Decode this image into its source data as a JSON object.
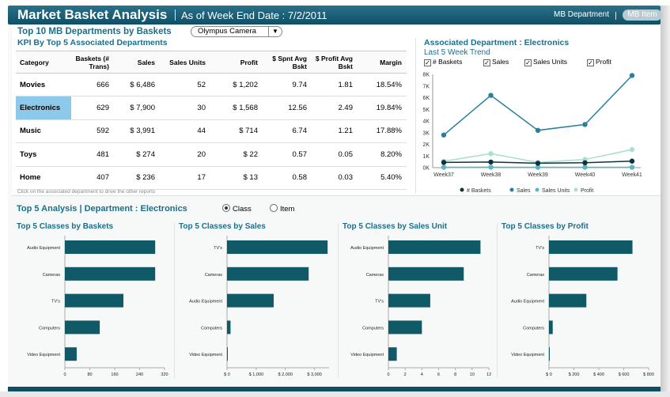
{
  "header": {
    "title": "Market Basket Analysis",
    "as_of": "As of Week End Date : 7/2/2011",
    "nav_department": "MB Department",
    "nav_item": "MB Item"
  },
  "top10": {
    "title": "Top 10 MB Departments by Baskets",
    "selected_value": "Olympus Camera",
    "kpi_title": "KPI By Top 5 Associated Departments",
    "note": "Click on the associated department to drive the other reports",
    "columns": [
      "Category",
      "Baskets (# Trans)",
      "Sales",
      "Sales Units",
      "Profit",
      "$ Spnt Avg Bskt",
      "$ Profit Avg Bskt",
      "Margin"
    ],
    "rows": [
      {
        "category": "Movies",
        "baskets": "666",
        "sales": "$ 6,486",
        "units": "52",
        "profit": "$ 1,202",
        "spnt": "9.74",
        "pavg": "1.81",
        "margin": "18.54%"
      },
      {
        "category": "Electronics",
        "baskets": "629",
        "sales": "$ 7,900",
        "units": "30",
        "profit": "$ 1,568",
        "spnt": "12.56",
        "pavg": "2.49",
        "margin": "19.84%"
      },
      {
        "category": "Music",
        "baskets": "592",
        "sales": "$ 3,991",
        "units": "44",
        "profit": "$ 714",
        "spnt": "6.74",
        "pavg": "1.21",
        "margin": "17.88%"
      },
      {
        "category": "Toys",
        "baskets": "481",
        "sales": "$ 274",
        "units": "20",
        "profit": "$ 22",
        "spnt": "0.57",
        "pavg": "0.05",
        "margin": "8.20%"
      },
      {
        "category": "Home",
        "baskets": "407",
        "sales": "$ 236",
        "units": "17",
        "profit": "$ 13",
        "spnt": "0.58",
        "pavg": "0.03",
        "margin": "5.40%"
      }
    ],
    "selected_row": 1
  },
  "trend": {
    "title": "Associated Department :  Electronics",
    "subtitle": "Last 5 Week Trend",
    "checkboxes": [
      "# Baskets",
      "Sales",
      "Sales Units",
      "Profit"
    ]
  },
  "top5": {
    "title": "Top 5 Analysis | Department :  Electronics",
    "radio_class": "Class",
    "radio_item": "Item",
    "selected": "Class"
  },
  "colors": {
    "brand": "#0f4f66",
    "accent": "#1b6f8a",
    "bar": "#0f5a66",
    "sales_line": "#2a7f9e",
    "baskets_line": "#0d3340",
    "units_line": "#5ab8c2",
    "profit_line": "#a8e0c8",
    "selected_row": "#8cc9ea"
  },
  "chart_data": [
    {
      "type": "line",
      "title": "Last 5 Week Trend",
      "x": [
        "Week37",
        "Week38",
        "Week39",
        "Week40",
        "Week41"
      ],
      "ylim": [
        0,
        8000
      ],
      "yticks": [
        "0K",
        "1K",
        "2K",
        "3K",
        "4K",
        "5K",
        "6K",
        "7K",
        "8K"
      ],
      "grid": false,
      "legend": "bottom",
      "series": [
        {
          "name": "# Baskets",
          "values": [
            450,
            480,
            380,
            420,
            560
          ]
        },
        {
          "name": "Sales",
          "values": [
            2800,
            6200,
            3200,
            3700,
            7900
          ]
        },
        {
          "name": "Sales Units",
          "values": [
            30,
            40,
            30,
            35,
            30
          ]
        },
        {
          "name": "Profit",
          "values": [
            550,
            1200,
            450,
            700,
            1550
          ]
        }
      ]
    },
    {
      "type": "bar",
      "title": "Top 5 Classes by Baskets",
      "categories": [
        "Audio Equipment",
        "Cameras",
        "TV's",
        "Computers",
        "Video Equipment"
      ],
      "values": [
        290,
        290,
        188,
        112,
        38
      ],
      "xlim": [
        0,
        320
      ],
      "xticks": [
        "0",
        "80",
        "160",
        "240",
        "320"
      ]
    },
    {
      "type": "bar",
      "title": "Top 5 Classes by Sales",
      "categories": [
        "TV's",
        "Cameras",
        "Audio Equipment",
        "Computers",
        "Video Equipment"
      ],
      "values": [
        3450,
        2800,
        1600,
        120,
        20
      ],
      "xlim": [
        0,
        3500
      ],
      "xticks": [
        "$ 0",
        "$ 1,000",
        "$ 2,000",
        "$ 3,000"
      ],
      "xtick_values": [
        0,
        1000,
        2000,
        3000
      ]
    },
    {
      "type": "bar",
      "title": "Top 5 Classes by Sales Unit",
      "categories": [
        "Audio Equipment",
        "Cameras",
        "TV's",
        "Computers",
        "Video Equipment"
      ],
      "values": [
        11,
        9,
        5,
        4,
        1
      ],
      "xlim": [
        0,
        12
      ],
      "xticks": [
        "0",
        "2",
        "4",
        "6",
        "8",
        "10",
        "12"
      ]
    },
    {
      "type": "bar",
      "title": "Top 5 Classes by Profit",
      "categories": [
        "TV's",
        "Cameras",
        "Audio Equipment",
        "Computers",
        "Video Equipment"
      ],
      "values": [
        670,
        550,
        300,
        30,
        5
      ],
      "xlim": [
        0,
        800
      ],
      "xticks": [
        "$ 0",
        "$ 200",
        "$ 400",
        "$ 600",
        "$ 800"
      ]
    }
  ]
}
